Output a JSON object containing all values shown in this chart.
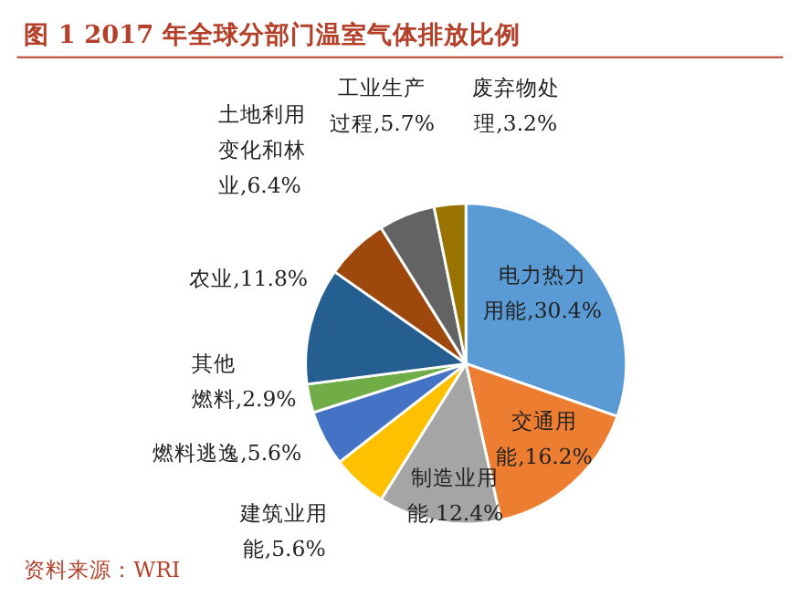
{
  "chart_data": {
    "type": "pie",
    "title": "图 1 2017 年全球分部门温室气体排放比例",
    "categories": [
      "电力热力用能",
      "交通用能",
      "制造业用能",
      "建筑业用能",
      "燃料逃逸",
      "其他燃料",
      "农业",
      "土地利用变化和林业",
      "工业生产过程",
      "废弃物处理"
    ],
    "values": [
      30.4,
      16.2,
      12.4,
      5.6,
      5.6,
      2.9,
      11.8,
      6.4,
      5.7,
      3.2
    ],
    "value_labels": [
      "30.4%",
      "16.2%",
      "12.4%",
      "5.6%",
      "5.6%",
      "2.9%",
      "11.8%",
      "6.4%",
      "5.7%",
      "3.2%"
    ],
    "colors": [
      "#5b9bd5",
      "#ed7d31",
      "#a5a5a5",
      "#ffc000",
      "#4472c4",
      "#70ad47",
      "#255e91",
      "#9e480e",
      "#636363",
      "#997300"
    ],
    "annotations": [
      "资料来源：WRI"
    ]
  }
}
